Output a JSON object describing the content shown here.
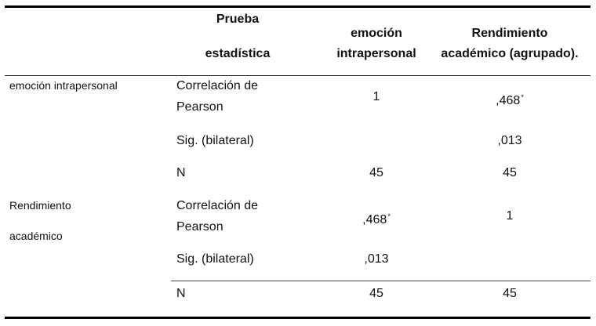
{
  "header": {
    "col_test_line1": "Prueba",
    "col_test_line2": "estadística",
    "col_var1_line1": "emoción",
    "col_var1_line2": "intrapersonal",
    "col_var2_line1": "Rendimiento",
    "col_var2_line2": "académico (agrupado)."
  },
  "rows": {
    "group1_label": "emoción intrapersonal",
    "group2_label_line1": "Rendimiento",
    "group2_label_line2": "académico",
    "pearson_line1": "Correlación de",
    "pearson_line2": "Pearson",
    "sig": "Sig. (bilateral)",
    "n": "N"
  },
  "values": {
    "g1_pearson_v1": "1",
    "g1_pearson_v2": ",468",
    "g1_sig_v2": ",013",
    "g1_n_v1": "45",
    "g1_n_v2": "45",
    "g2_pearson_v1": ",468",
    "g2_pearson_v2": "1",
    "g2_sig_v1": ",013",
    "g2_n_v1": "45",
    "g2_n_v2": "45",
    "sig_marker": "*"
  }
}
